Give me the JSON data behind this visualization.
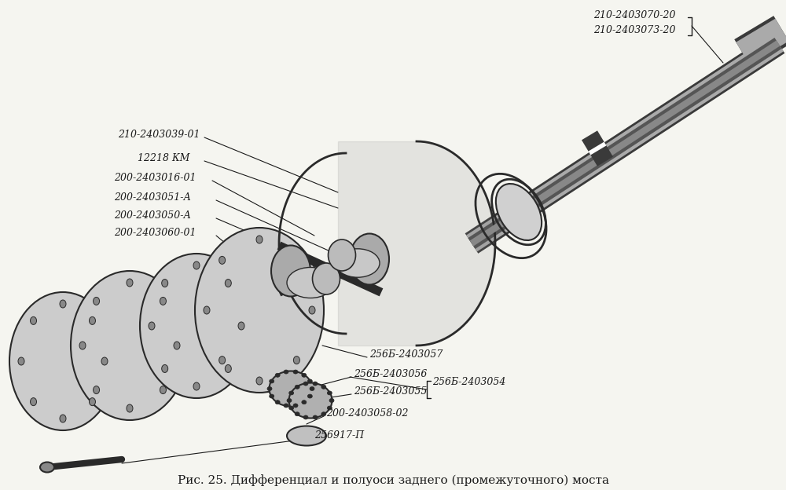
{
  "title": "Рис. 25. Дифференциал и полуоси заднего (промежуточного) моста",
  "background_color": "#f5f5f0",
  "fig_width": 10.0,
  "fig_height": 6.24,
  "labels": {
    "label1": "210-2403070-20",
    "label2": "210-2403073-20",
    "label3": "210-2403039-01",
    "label4": "12218 КМ",
    "label5": "200-2403016-01",
    "label6": "200-2403051-А",
    "label7": "200-2403050-А",
    "label8": "200-2403060-01",
    "label9": "256Б-2403057",
    "label10": "256Б-2403056",
    "label11": "256Б-2403055",
    "label12": "256Б-2403054",
    "label13": "200-2403058-02",
    "label14": "256917-П"
  },
  "text_color": "#1a1a1a",
  "line_color": "#1a1a1a",
  "drawing_color": "#2a2a2a"
}
